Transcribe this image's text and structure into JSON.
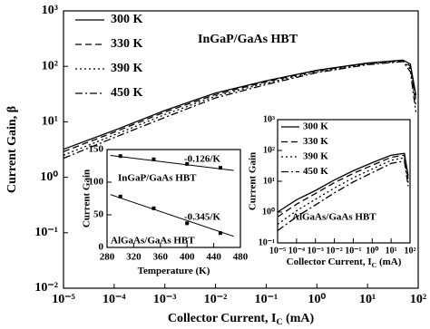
{
  "chart_data": [
    {
      "type": "line",
      "xlabel": {
        "text": "Collector Current, I",
        "sub": "C",
        "unit": " (mA)"
      },
      "ylabel": "Current Gain, β",
      "annotation": "InGaP/GaAs HBT",
      "xscale": "log",
      "yscale": "log",
      "xlim": [
        1e-05,
        100
      ],
      "ylim": [
        0.01,
        1000
      ],
      "xticks": [
        {
          "value": 1e-05,
          "label": "10⁻⁵"
        },
        {
          "value": 0.0001,
          "label": "10⁻⁴"
        },
        {
          "value": 0.001,
          "label": "10⁻³"
        },
        {
          "value": 0.01,
          "label": "10⁻²"
        },
        {
          "value": 0.1,
          "label": "10⁻¹"
        },
        {
          "value": 1,
          "label": "10⁰"
        },
        {
          "value": 10,
          "label": "10¹"
        },
        {
          "value": 100,
          "label": "10²"
        }
      ],
      "yticks": [
        {
          "value": 0.01,
          "label": "10⁻²"
        },
        {
          "value": 0.1,
          "label": "10⁻¹"
        },
        {
          "value": 1,
          "label": "10⁰"
        },
        {
          "value": 10,
          "label": "10¹"
        },
        {
          "value": 100,
          "label": "10²"
        },
        {
          "value": 1000,
          "label": "10³"
        }
      ],
      "legend": "upper left",
      "x": [
        1e-05,
        0.0001,
        0.001,
        0.01,
        0.1,
        1,
        10,
        50,
        70,
        90
      ],
      "series": [
        {
          "name": "300 K",
          "color": "#000000",
          "dash": "solid",
          "values": [
            3.2,
            7,
            16,
            33,
            55,
            85,
            115,
            130,
            110,
            30
          ]
        },
        {
          "name": "330 K",
          "color": "#000000",
          "dash": "dashed",
          "values": [
            2.9,
            6.5,
            15,
            31,
            53,
            83,
            113,
            128,
            100,
            25
          ]
        },
        {
          "name": "390 K",
          "color": "#000000",
          "dash": "dotted",
          "values": [
            2.5,
            5.8,
            13.5,
            29,
            50,
            80,
            110,
            125,
            90,
            20
          ]
        },
        {
          "name": "450 K",
          "color": "#000000",
          "dash": "dashdot",
          "values": [
            2.2,
            5.2,
            12,
            27,
            47,
            77,
            107,
            122,
            80,
            15
          ]
        }
      ]
    },
    {
      "type": "scatter",
      "xlabel": {
        "text": "Temperature (K)"
      },
      "ylabel": "Current Gain",
      "xlim": [
        280,
        480
      ],
      "ylim": [
        0,
        150
      ],
      "xticks": [
        280,
        320,
        360,
        400,
        440,
        480
      ],
      "yticks": [
        0,
        50,
        100,
        150
      ],
      "series": [
        {
          "label": "InGaP/GaAs HBT",
          "color": "#000000",
          "x": [
            300,
            350,
            400,
            450
          ],
          "values": [
            140,
            135,
            128,
            122
          ],
          "fit": {
            "x": [
              285,
              470
            ],
            "values": [
              141,
              118
            ],
            "slope_label": "-0.126/K"
          }
        },
        {
          "label": "AlGaAs/GaAs HBT",
          "color": "#000000",
          "x": [
            300,
            350,
            400,
            450
          ],
          "values": [
            78,
            60,
            37,
            22
          ],
          "fit": {
            "x": [
              285,
              470
            ],
            "values": [
              81,
              17
            ],
            "slope_label": "-0.345/K"
          }
        }
      ]
    },
    {
      "type": "line",
      "xlabel": {
        "text": "Collector Current, I",
        "sub": "C",
        "unit": " (mA)"
      },
      "ylabel": "Current Gain",
      "annotation": "AlGaAs/GaAs HBT",
      "xscale": "log",
      "yscale": "log",
      "xlim": [
        1e-05,
        100
      ],
      "ylim": [
        0.1,
        1000
      ],
      "xticks": [
        {
          "value": 1e-05,
          "label": "10⁻⁵"
        },
        {
          "value": 0.0001,
          "label": "10⁻⁴"
        },
        {
          "value": 0.001,
          "label": "10⁻³"
        },
        {
          "value": 0.01,
          "label": "10⁻²"
        },
        {
          "value": 0.1,
          "label": "10⁻¹"
        },
        {
          "value": 1,
          "label": "10⁰"
        },
        {
          "value": 10,
          "label": "10¹"
        },
        {
          "value": 100,
          "label": "10²"
        }
      ],
      "yticks": [
        {
          "value": 0.1,
          "label": "10⁻¹"
        },
        {
          "value": 1,
          "label": "10⁰"
        },
        {
          "value": 10,
          "label": "10¹"
        },
        {
          "value": 100,
          "label": "10²"
        },
        {
          "value": 1000,
          "label": "10³"
        }
      ],
      "legend": "upper left",
      "x": [
        1e-05,
        0.0001,
        0.001,
        0.01,
        0.1,
        1,
        10,
        50,
        80
      ],
      "series": [
        {
          "name": "300 K",
          "color": "#000000",
          "dash": "solid",
          "values": [
            1,
            2.5,
            5,
            11,
            22,
            40,
            70,
            80,
            15
          ]
        },
        {
          "name": "330 K",
          "color": "#000000",
          "dash": "dashed",
          "values": [
            0.7,
            1.8,
            4,
            9,
            18,
            33,
            60,
            70,
            12
          ]
        },
        {
          "name": "390 K",
          "color": "#000000",
          "dash": "dotted",
          "values": [
            0.4,
            1.1,
            2.6,
            6,
            13,
            25,
            48,
            58,
            9
          ]
        },
        {
          "name": "450 K",
          "color": "#000000",
          "dash": "dashdot",
          "values": [
            0.25,
            0.7,
            1.7,
            4.2,
            9.5,
            19,
            38,
            45,
            7
          ]
        }
      ]
    }
  ]
}
